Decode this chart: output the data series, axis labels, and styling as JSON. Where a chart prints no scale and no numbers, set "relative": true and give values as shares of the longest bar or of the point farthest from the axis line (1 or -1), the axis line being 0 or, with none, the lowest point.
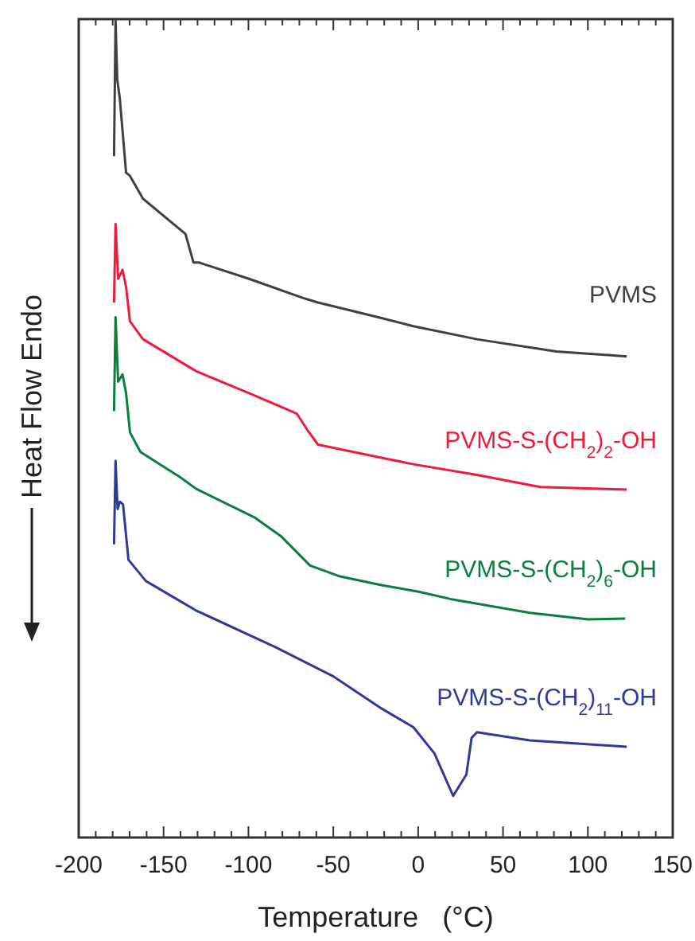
{
  "chart_data": {
    "type": "line",
    "xlabel": "Temperature   (°C)",
    "ylabel": "Heat Flow Endo",
    "relative": true,
    "tick_labels": "x",
    "grid": false,
    "marker": "none",
    "line_style": "solid",
    "xlim": [
      -200,
      150
    ],
    "xticks": [
      -200,
      {
        "value": -190,
        "label": null
      },
      {
        "value": -180,
        "label": null
      },
      {
        "value": -170,
        "label": null
      },
      {
        "value": -160,
        "label": null
      },
      -150,
      {
        "value": -140,
        "label": null
      },
      {
        "value": -130,
        "label": null
      },
      {
        "value": -120,
        "label": null
      },
      {
        "value": -110,
        "label": null
      },
      -100,
      {
        "value": -90,
        "label": null
      },
      {
        "value": -80,
        "label": null
      },
      {
        "value": -70,
        "label": null
      },
      {
        "value": -60,
        "label": null
      },
      -50,
      {
        "value": -40,
        "label": null
      },
      {
        "value": -30,
        "label": null
      },
      {
        "value": -20,
        "label": null
      },
      {
        "value": -10,
        "label": null
      },
      0,
      {
        "value": 10,
        "label": null
      },
      {
        "value": 20,
        "label": null
      },
      {
        "value": 30,
        "label": null
      },
      {
        "value": 40,
        "label": null
      },
      50,
      {
        "value": 60,
        "label": null
      },
      {
        "value": 70,
        "label": null
      },
      {
        "value": 80,
        "label": null
      },
      {
        "value": 90,
        "label": null
      },
      100,
      {
        "value": 110,
        "label": null
      },
      {
        "value": 120,
        "label": null
      },
      {
        "value": 130,
        "label": null
      },
      {
        "value": 140,
        "label": null
      },
      150
    ],
    "series": [
      {
        "name": "PVMS",
        "color": "#404040",
        "x": [
          -179.2,
          -178.3,
          -177.3,
          -175.8,
          -172.1,
          -169.8,
          -162.1,
          -137.1,
          -132.4,
          -129.3,
          -99.6,
          -68.4,
          -59.0,
          -21.6,
          -2.8,
          34.6,
          81.4,
          122.9
        ],
        "values": [
          0.834,
          1,
          0.928,
          0.905,
          0.814,
          0.81,
          0.782,
          0.739,
          0.704,
          0.704,
          0.684,
          0.661,
          0.655,
          0.636,
          0.626,
          0.61,
          0.595,
          0.589
        ]
      },
      {
        "name": "PVMS-S-(CH$_{2}$)$_{2}$-OH",
        "color": "#ee1c3a",
        "x": [
          -179.2,
          -178.3,
          -176.8,
          -174.2,
          -172.1,
          -169.8,
          -162.1,
          -130.9,
          -99.6,
          -71.5,
          -65.3,
          -59.0,
          -21.6,
          -2.8,
          34.6,
          72.0,
          122.9
        ],
        "values": [
          0.655,
          0.751,
          0.684,
          0.695,
          0.674,
          0.632,
          0.61,
          0.571,
          0.544,
          0.519,
          0.499,
          0.481,
          0.465,
          0.457,
          0.444,
          0.429,
          0.426
        ]
      },
      {
        "name": "PVMS-S-(CH$_{2}$)$_{6}$-OH",
        "color": "#0a7f3a",
        "x": [
          -179.2,
          -178.3,
          -176.8,
          -174.2,
          -172.1,
          -169.8,
          -163.6,
          -140.2,
          -130.9,
          -96.5,
          -80.9,
          -63.7,
          -46.6,
          -21.6,
          0.3,
          19.0,
          65.8,
          100.2,
          122.0
        ],
        "values": [
          0.522,
          0.637,
          0.558,
          0.567,
          0.544,
          0.496,
          0.472,
          0.441,
          0.427,
          0.392,
          0.369,
          0.333,
          0.32,
          0.309,
          0.301,
          0.292,
          0.275,
          0.267,
          0.268
        ]
      },
      {
        "name": "PVMS-S-(CH$_{2}$)$_{11}$-OH",
        "color": "#2e3a9a",
        "x": [
          -179.2,
          -178.3,
          -177.1,
          -175.8,
          -173.9,
          -170.7,
          -160.4,
          -130.9,
          -84.1,
          -49.7,
          -21.6,
          -2.8,
          9.6,
          20.6,
          28.4,
          31.5,
          34.6,
          65.8,
          122.9
        ],
        "values": [
          0.359,
          0.461,
          0.402,
          0.411,
          0.408,
          0.34,
          0.314,
          0.278,
          0.233,
          0.197,
          0.158,
          0.135,
          0.103,
          0.051,
          0.077,
          0.122,
          0.129,
          0.119,
          0.111
        ]
      }
    ]
  }
}
